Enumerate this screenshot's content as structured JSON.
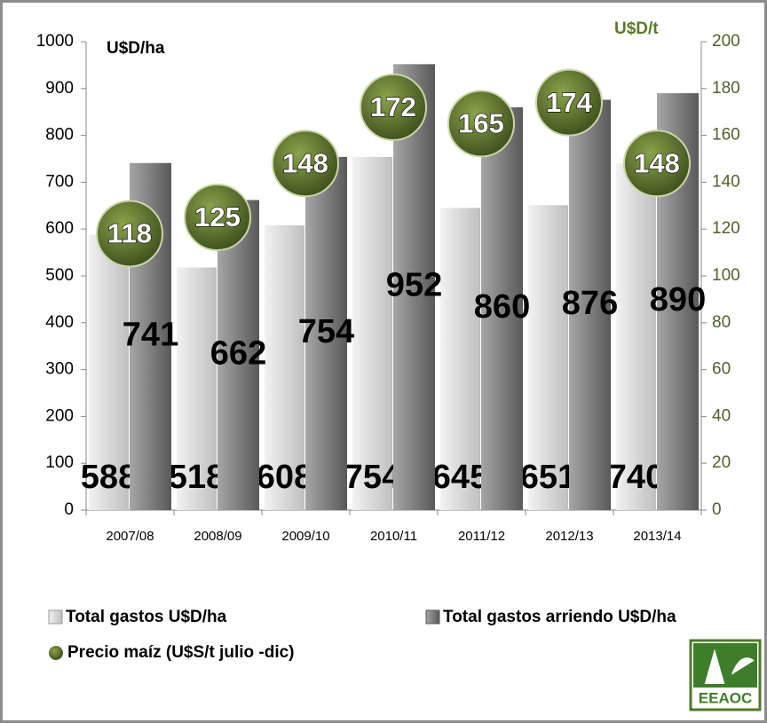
{
  "chart_data": {
    "type": "bar",
    "categories": [
      "2007/08",
      "2008/09",
      "2009/10",
      "2010/11",
      "2011/12",
      "2012/13",
      "2013/14"
    ],
    "series": [
      {
        "name": "Total gastos U$D/ha",
        "color": "#d9d9d9",
        "values": [
          588,
          518,
          608,
          754,
          645,
          651,
          740
        ]
      },
      {
        "name": "Total gastos arriendo U$D/ha",
        "color": "#7f7f7f",
        "values": [
          741,
          662,
          754,
          952,
          860,
          876,
          890
        ]
      },
      {
        "name": "Precio maíz (U$S/t julio -dic)",
        "color": "#4f6228",
        "axis": "y2",
        "type": "scatter",
        "values": [
          118,
          125,
          148,
          172,
          165,
          174,
          148
        ]
      }
    ],
    "ylabel": "U$D/ha",
    "y2label": "U$D/t",
    "ylim": [
      0,
      1000
    ],
    "yticks": [
      0,
      100,
      200,
      300,
      400,
      500,
      600,
      700,
      800,
      900,
      1000
    ],
    "y2lim": [
      0,
      200
    ],
    "y2ticks": [
      0,
      20,
      40,
      60,
      80,
      100,
      120,
      140,
      160,
      180,
      200
    ],
    "logo": "EEAOC"
  }
}
